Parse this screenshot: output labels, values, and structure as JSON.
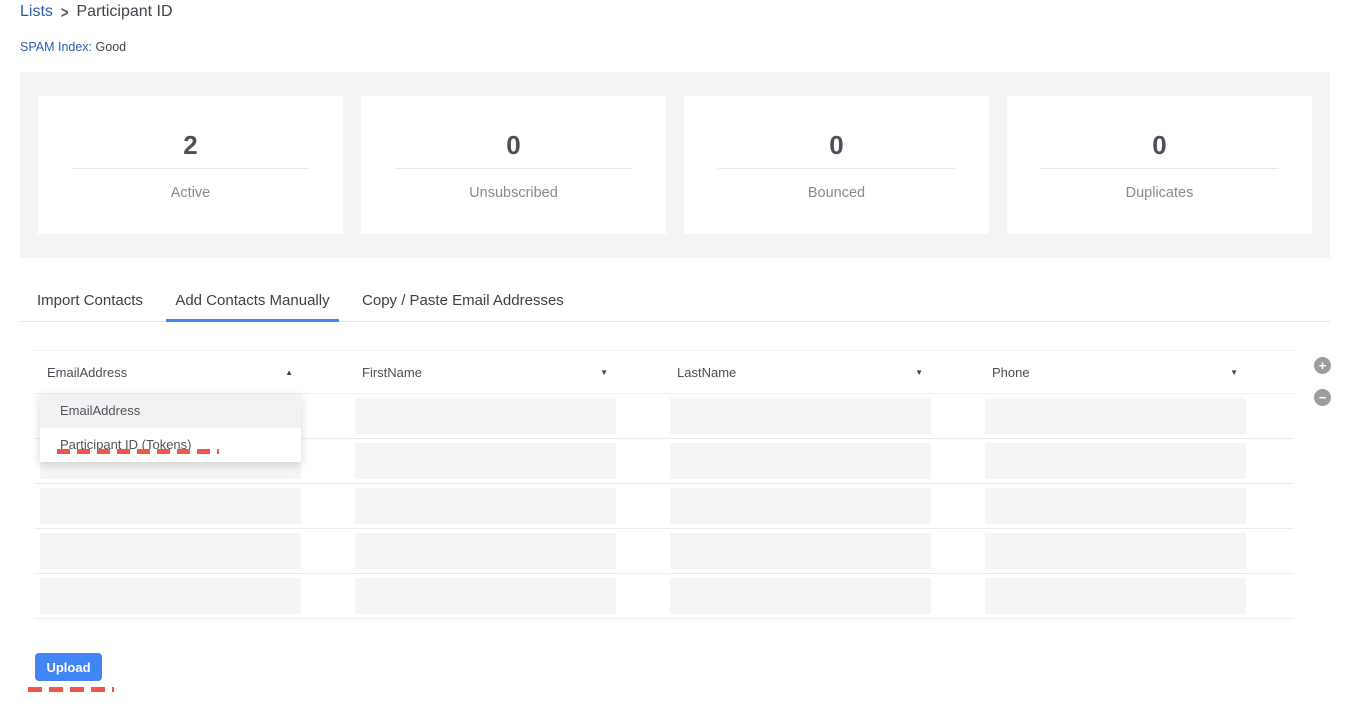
{
  "breadcrumb": {
    "parent": "Lists",
    "separator": "&gt;",
    "separator_glyph": ">",
    "current": "Participant ID"
  },
  "spam_index": {
    "label": "SPAM Index:",
    "value": "Good"
  },
  "stats": {
    "cards": [
      {
        "value": "2",
        "label": "Active"
      },
      {
        "value": "0",
        "label": "Unsubscribed"
      },
      {
        "value": "0",
        "label": "Bounced"
      },
      {
        "value": "0",
        "label": "Duplicates"
      }
    ]
  },
  "tabs": [
    {
      "label": "Import Contacts",
      "active": false
    },
    {
      "label": "Add Contacts Manually",
      "active": true
    },
    {
      "label": "Copy / Paste Email Addresses",
      "active": false
    }
  ],
  "table": {
    "row_count": 5,
    "columns": [
      {
        "selected": "EmailAddress",
        "caret": "▲",
        "state": "open"
      },
      {
        "selected": "FirstName",
        "caret": "▼",
        "state": "closed"
      },
      {
        "selected": "LastName",
        "caret": "▼",
        "state": "closed"
      },
      {
        "selected": "Phone",
        "caret": "▼",
        "state": "closed"
      }
    ],
    "dropdown": {
      "options": [
        {
          "label": "EmailAddress",
          "highlighted": true
        },
        {
          "label": "Participant ID (Tokens)",
          "highlighted": false
        }
      ]
    }
  },
  "row_actions": {
    "add_glyph": "+",
    "remove_glyph": "−"
  },
  "upload": {
    "label": "Upload"
  },
  "annotations": [
    {
      "target": "participant-id-tokens-option",
      "style": "red-dashed-underline"
    },
    {
      "target": "upload-button",
      "style": "red-dashed-underline"
    }
  ],
  "colors": {
    "accent_blue": "#4285f4",
    "link_blue": "#2b5daa",
    "annotation_red": "#f0564a",
    "panel_gray": "#f4f4f5"
  }
}
